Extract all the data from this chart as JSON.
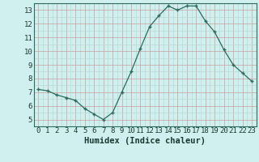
{
  "x": [
    0,
    1,
    2,
    3,
    4,
    5,
    6,
    7,
    8,
    9,
    10,
    11,
    12,
    13,
    14,
    15,
    16,
    17,
    18,
    19,
    20,
    21,
    22,
    23
  ],
  "y": [
    7.2,
    7.1,
    6.8,
    6.6,
    6.4,
    5.8,
    5.4,
    5.0,
    5.5,
    7.0,
    8.5,
    10.2,
    11.8,
    12.6,
    13.3,
    13.0,
    13.3,
    13.3,
    12.2,
    11.4,
    10.1,
    9.0,
    8.4,
    7.8
  ],
  "xlabel": "Humidex (Indice chaleur)",
  "ylim": [
    4.5,
    13.5
  ],
  "xlim": [
    -0.5,
    23.5
  ],
  "yticks": [
    5,
    6,
    7,
    8,
    9,
    10,
    11,
    12,
    13
  ],
  "xticks": [
    0,
    1,
    2,
    3,
    4,
    5,
    6,
    7,
    8,
    9,
    10,
    11,
    12,
    13,
    14,
    15,
    16,
    17,
    18,
    19,
    20,
    21,
    22,
    23
  ],
  "line_color": "#2e6b5e",
  "marker_color": "#2e6b5e",
  "bg_color": "#cff0ee",
  "grid_major_color": "#c8a0a0",
  "grid_minor_color": "#b8d8d4",
  "xlabel_fontsize": 7.5,
  "tick_fontsize": 6.5
}
